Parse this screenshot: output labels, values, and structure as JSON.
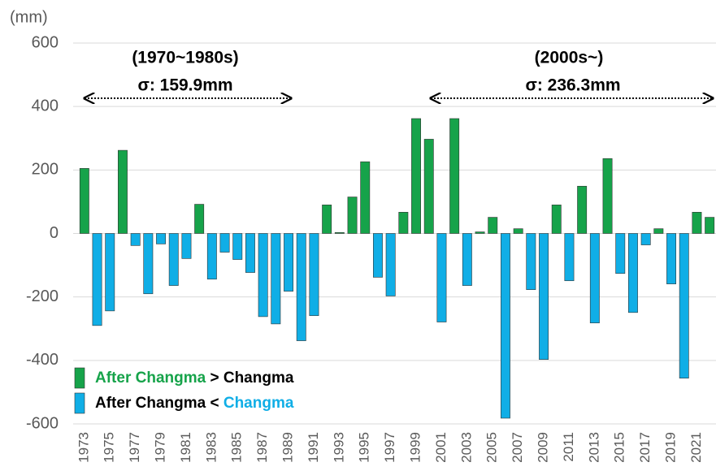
{
  "chart_data": {
    "type": "bar",
    "y_axis_label": "(mm)",
    "categories": [
      "1973",
      null,
      "1975",
      null,
      "1977",
      null,
      "1979",
      null,
      "1981",
      null,
      "1983",
      null,
      "1985",
      null,
      "1987",
      null,
      "1989",
      null,
      "1991",
      null,
      "1993",
      null,
      "1995",
      null,
      "1997",
      null,
      "1999",
      null,
      "2001",
      null,
      "2003",
      null,
      "2005",
      null,
      "2007",
      null,
      "2009",
      null,
      "2011",
      null,
      "2013",
      null,
      "2015",
      null,
      "2017",
      null,
      "2019",
      null,
      "2021",
      null
    ],
    "values": [
      205,
      -290,
      -244,
      262,
      -38,
      -190,
      -33,
      -164,
      -79,
      92,
      -144,
      -59,
      -82,
      -123,
      -262,
      -285,
      -182,
      -338,
      -259,
      90,
      3,
      115,
      226,
      -138,
      -197,
      67,
      362,
      297,
      -279,
      362,
      -164,
      5,
      51,
      -582,
      15,
      -177,
      -397,
      90,
      -149,
      149,
      -282,
      236,
      -126,
      -249,
      -36,
      15,
      -159,
      -456,
      67,
      51
    ],
    "positive_color": "#16a34a",
    "negative_color": "#10aee6",
    "ylim": [
      -600,
      600
    ],
    "yticks": [
      -600,
      -400,
      -200,
      0,
      200,
      400,
      600
    ],
    "grid": true,
    "annotations": [
      {
        "period": "(1970~1980s)",
        "sigma": "σ: 159.9mm"
      },
      {
        "period": "(2000s~)",
        "sigma": "σ: 236.3mm"
      }
    ],
    "legend": [
      {
        "parts": [
          "After Changma",
          " > ",
          "Changma"
        ]
      },
      {
        "parts": [
          "After Changma",
          " < ",
          "Changma"
        ]
      }
    ]
  }
}
